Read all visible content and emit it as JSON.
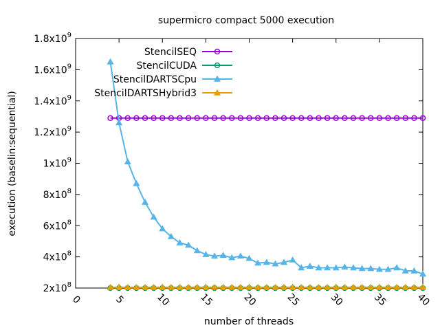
{
  "chart_data": {
    "type": "line",
    "title": "supermicro compact 5000 execution",
    "xlabel": "number of threads",
    "ylabel": "execution (baselin:sequential)",
    "xlim": [
      0,
      40
    ],
    "ylim": [
      200000000,
      1800000000
    ],
    "xticks": [
      0,
      5,
      10,
      15,
      20,
      25,
      30,
      35,
      40
    ],
    "yticks": [
      {
        "value": 200000000,
        "mantissa": "2x10",
        "exp": "8"
      },
      {
        "value": 400000000,
        "mantissa": "4x10",
        "exp": "8"
      },
      {
        "value": 600000000,
        "mantissa": "6x10",
        "exp": "8"
      },
      {
        "value": 800000000,
        "mantissa": "8x10",
        "exp": "8"
      },
      {
        "value": 1000000000,
        "mantissa": "1x10",
        "exp": "9"
      },
      {
        "value": 1200000000,
        "mantissa": "1.2x10",
        "exp": "9"
      },
      {
        "value": 1400000000,
        "mantissa": "1.4x10",
        "exp": "9"
      },
      {
        "value": 1600000000,
        "mantissa": "1.6x10",
        "exp": "9"
      },
      {
        "value": 1800000000,
        "mantissa": "1.8x10",
        "exp": "9"
      }
    ],
    "grid": false,
    "legend_position": "top-center",
    "x": [
      4,
      5,
      6,
      7,
      8,
      9,
      10,
      11,
      12,
      13,
      14,
      15,
      16,
      17,
      18,
      19,
      20,
      21,
      22,
      23,
      24,
      25,
      26,
      27,
      28,
      29,
      30,
      31,
      32,
      33,
      34,
      35,
      36,
      37,
      38,
      39,
      40
    ],
    "series": [
      {
        "name": "StencilSEQ",
        "color": "#9400d3",
        "marker": "circle",
        "values": [
          1290000000,
          1290000000,
          1290000000,
          1290000000,
          1290000000,
          1290000000,
          1290000000,
          1290000000,
          1290000000,
          1290000000,
          1290000000,
          1290000000,
          1290000000,
          1290000000,
          1290000000,
          1290000000,
          1290000000,
          1290000000,
          1290000000,
          1290000000,
          1290000000,
          1290000000,
          1290000000,
          1290000000,
          1290000000,
          1290000000,
          1290000000,
          1290000000,
          1290000000,
          1290000000,
          1290000000,
          1290000000,
          1290000000,
          1290000000,
          1290000000,
          1290000000,
          1290000000
        ]
      },
      {
        "name": "StencilCUDA",
        "color": "#009e73",
        "marker": "circle",
        "values": [
          200000000,
          200000000,
          200000000,
          200000000,
          200000000,
          200000000,
          200000000,
          200000000,
          200000000,
          200000000,
          200000000,
          200000000,
          200000000,
          200000000,
          200000000,
          200000000,
          200000000,
          200000000,
          200000000,
          200000000,
          200000000,
          200000000,
          200000000,
          200000000,
          200000000,
          200000000,
          200000000,
          200000000,
          200000000,
          200000000,
          200000000,
          200000000,
          200000000,
          200000000,
          200000000,
          200000000,
          200000000
        ]
      },
      {
        "name": "StencilDARTSCpu",
        "color": "#56b4e9",
        "marker": "triangle",
        "values": [
          1650000000,
          1260000000,
          1010000000,
          870000000,
          750000000,
          655000000,
          580000000,
          530000000,
          490000000,
          475000000,
          440000000,
          415000000,
          405000000,
          410000000,
          395000000,
          405000000,
          390000000,
          360000000,
          365000000,
          355000000,
          365000000,
          380000000,
          330000000,
          340000000,
          330000000,
          330000000,
          330000000,
          335000000,
          330000000,
          325000000,
          325000000,
          320000000,
          320000000,
          330000000,
          310000000,
          310000000,
          290000000
        ]
      },
      {
        "name": "StencilDARTSHybrid3",
        "color": "#e69f00",
        "marker": "triangle",
        "values": [
          205000000,
          205000000,
          205000000,
          205000000,
          205000000,
          205000000,
          205000000,
          205000000,
          205000000,
          205000000,
          205000000,
          205000000,
          205000000,
          205000000,
          205000000,
          205000000,
          205000000,
          205000000,
          205000000,
          205000000,
          205000000,
          205000000,
          205000000,
          205000000,
          205000000,
          205000000,
          205000000,
          205000000,
          205000000,
          205000000,
          205000000,
          205000000,
          205000000,
          205000000,
          205000000,
          205000000,
          205000000
        ]
      }
    ]
  }
}
